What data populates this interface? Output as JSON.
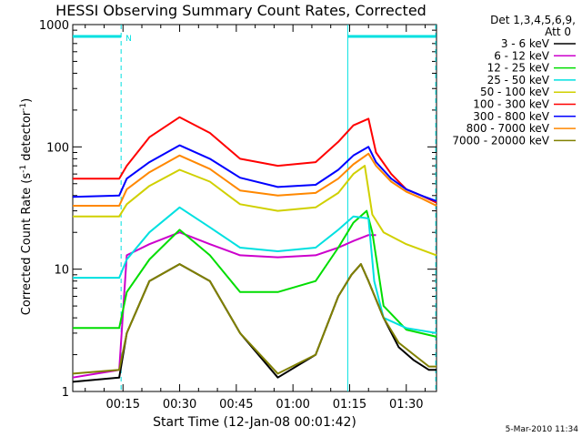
{
  "chart_data": {
    "type": "line",
    "title": "HESSI Observing Summary Count Rates, Corrected",
    "xlabel": "Start Time (12-Jan-08 00:01:42)",
    "ylabel_main": "Corrected Count Rate (s",
    "ylabel_sup1": "-1",
    "ylabel_mid": " detector",
    "ylabel_sup2": "-1",
    "ylabel_end": ")",
    "footer": "5-Mar-2010 11:34",
    "y_scale": "log",
    "ylim": [
      1,
      1000
    ],
    "x_unit": "minutes",
    "xlim": [
      1.7,
      98
    ],
    "x_ticks": [
      {
        "value": 15,
        "label": "00:15"
      },
      {
        "value": 30,
        "label": "00:30"
      },
      {
        "value": 45,
        "label": "00:45"
      },
      {
        "value": 60,
        "label": "01:00"
      },
      {
        "value": 75,
        "label": "01:15"
      },
      {
        "value": 90,
        "label": "01:30"
      }
    ],
    "y_ticks": [
      {
        "value": 1,
        "label": "1"
      },
      {
        "value": 10,
        "label": "10"
      },
      {
        "value": 100,
        "label": "100"
      },
      {
        "value": 1000,
        "label": "1000"
      }
    ],
    "legend": {
      "placement": "right",
      "header1": "Det 1,3,4,5,6,9,",
      "header2": "Att 0",
      "entries": [
        "3 - 6 keV",
        "6 - 12 keV",
        "12 - 25 keV",
        "25 - 50 keV",
        "50 - 100 keV",
        "100 - 300 keV",
        "300 - 800 keV",
        "800 - 7000 keV",
        "7000 - 20000 keV"
      ]
    },
    "series": [
      {
        "name": "3 - 6 keV",
        "color": "#000000",
        "x": [
          1.7,
          14,
          16,
          22,
          30,
          38,
          46,
          56,
          66,
          72,
          75.5,
          78,
          80,
          84,
          88,
          92,
          96,
          98
        ],
        "y": [
          1.2,
          1.3,
          3,
          8,
          11,
          8,
          3,
          1.3,
          2,
          6,
          9,
          11,
          8,
          4,
          2.3,
          1.8,
          1.5,
          1.5
        ]
      },
      {
        "name": "6 - 12 keV",
        "color": "#cc00cc",
        "x": [
          1.7,
          14,
          16,
          22,
          30,
          38,
          46,
          56,
          66,
          72,
          76,
          80,
          82
        ],
        "y": [
          1.3,
          1.5,
          13,
          16,
          20,
          16,
          13,
          12.5,
          13,
          15,
          17,
          19,
          19
        ]
      },
      {
        "name": "12 - 25 keV",
        "color": "#00dd00",
        "x": [
          1.7,
          14,
          16,
          22,
          30,
          38,
          46,
          56,
          66,
          72,
          76,
          79.5,
          81,
          84,
          90,
          98
        ],
        "y": [
          3.3,
          3.3,
          6.5,
          12,
          21,
          13,
          6.5,
          6.5,
          8,
          15,
          24,
          30,
          20,
          5,
          3.2,
          2.8
        ]
      },
      {
        "name": "25 - 50 keV",
        "color": "#00e0e0",
        "x": [
          1.7,
          14,
          16,
          22,
          30,
          38,
          46,
          56,
          66,
          72,
          76,
          80,
          81.5,
          84,
          90,
          98
        ],
        "y": [
          8.5,
          8.5,
          12,
          20,
          32,
          22,
          15,
          14,
          15,
          21,
          27,
          26,
          8,
          4,
          3.3,
          3.0
        ]
      },
      {
        "name": "50 - 100 keV",
        "color": "#d0d000",
        "x": [
          1.7,
          14,
          16,
          22,
          30,
          38,
          46,
          56,
          66,
          72,
          76,
          79,
          81,
          84,
          90,
          98
        ],
        "y": [
          27,
          27,
          34,
          48,
          65,
          52,
          34,
          30,
          32,
          42,
          60,
          70,
          28,
          20,
          16,
          13
        ]
      },
      {
        "name": "100 - 300 keV",
        "color": "#ff0000",
        "x": [
          1.7,
          14,
          16,
          22,
          30,
          38,
          46,
          56,
          66,
          72,
          76,
          80,
          82,
          86,
          90,
          94,
          98
        ],
        "y": [
          55,
          55,
          70,
          120,
          175,
          130,
          80,
          70,
          75,
          110,
          150,
          170,
          90,
          60,
          45,
          40,
          35
        ]
      },
      {
        "name": "300 - 800 keV",
        "color": "#0000ff",
        "x": [
          1.7,
          14,
          16,
          22,
          30,
          38,
          46,
          56,
          66,
          72,
          76,
          80,
          82,
          86,
          90,
          94,
          98
        ],
        "y": [
          39,
          40,
          55,
          75,
          103,
          80,
          56,
          47,
          49,
          65,
          85,
          100,
          75,
          55,
          45,
          40,
          36
        ]
      },
      {
        "name": "800 - 7000 keV",
        "color": "#ff8800",
        "x": [
          1.7,
          14,
          16,
          22,
          30,
          38,
          46,
          56,
          66,
          72,
          76,
          80,
          82,
          86,
          90,
          94,
          98
        ],
        "y": [
          33,
          33,
          45,
          62,
          85,
          66,
          44,
          40,
          42,
          55,
          72,
          88,
          70,
          52,
          43,
          38,
          33
        ]
      },
      {
        "name": "7000 - 20000 keV",
        "color": "#808000",
        "x": [
          1.7,
          14,
          16,
          22,
          30,
          38,
          46,
          56,
          66,
          72,
          75.5,
          78,
          80,
          84,
          88,
          92,
          96,
          98
        ],
        "y": [
          1.4,
          1.5,
          3,
          8,
          11,
          8,
          3,
          1.4,
          2,
          6,
          9,
          11,
          8,
          4,
          2.5,
          2,
          1.6,
          1.6
        ]
      }
    ],
    "annotations": {
      "saa_label": "N",
      "markers": [
        {
          "type": "dashed-line",
          "x": 14.5
        },
        {
          "type": "solid-line",
          "x": 74.5
        },
        {
          "type": "dashed-line",
          "x": 97.8
        }
      ],
      "bars": [
        {
          "x_start": 1.7,
          "x_end": 14.5,
          "y": 800
        },
        {
          "x_start": 74.5,
          "x_end": 97.8,
          "y": 800
        }
      ]
    }
  }
}
